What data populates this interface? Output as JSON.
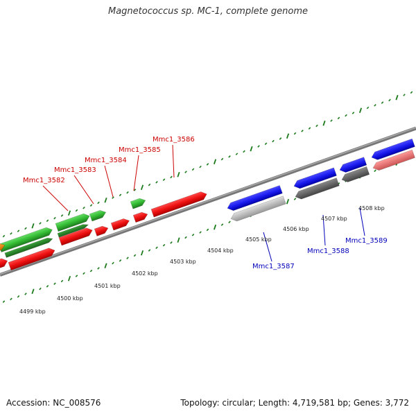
{
  "title": "Magnetococcus sp. MC-1, complete genome",
  "footer": {
    "accession": "Accession: NC_008576",
    "summary": "Topology: circular; Length: 4,719,581 bp; Genes: 3,772"
  },
  "colors": {
    "forward_label": "#cc0000",
    "reverse_label": "#0000bb",
    "red_gene": "#ee1111",
    "green_gene": "#33bb33",
    "blue_gene": "#1a1aee",
    "gray_gene": "#666666",
    "light_gray_gene": "#bbbbbb",
    "pink_gene": "#ee7777",
    "orange_gene": "#ee8800",
    "backbone": "#888888",
    "tick": "#1a7a1a"
  },
  "kbp_labels": [
    "4499 kbp",
    "4500 kbp",
    "4501 kbp",
    "4502 kbp",
    "4503 kbp",
    "4504 kbp",
    "4505 kbp",
    "4506 kbp",
    "4507 kbp",
    "4508 kbp"
  ],
  "forward_gene_labels": [
    "Mmc1_3582",
    "Mmc1_3583",
    "Mmc1_3584",
    "Mmc1_3585",
    "Mmc1_3586"
  ],
  "reverse_gene_labels": [
    "Mmc1_3587",
    "Mmc1_3588",
    "Mmc1_3589"
  ]
}
